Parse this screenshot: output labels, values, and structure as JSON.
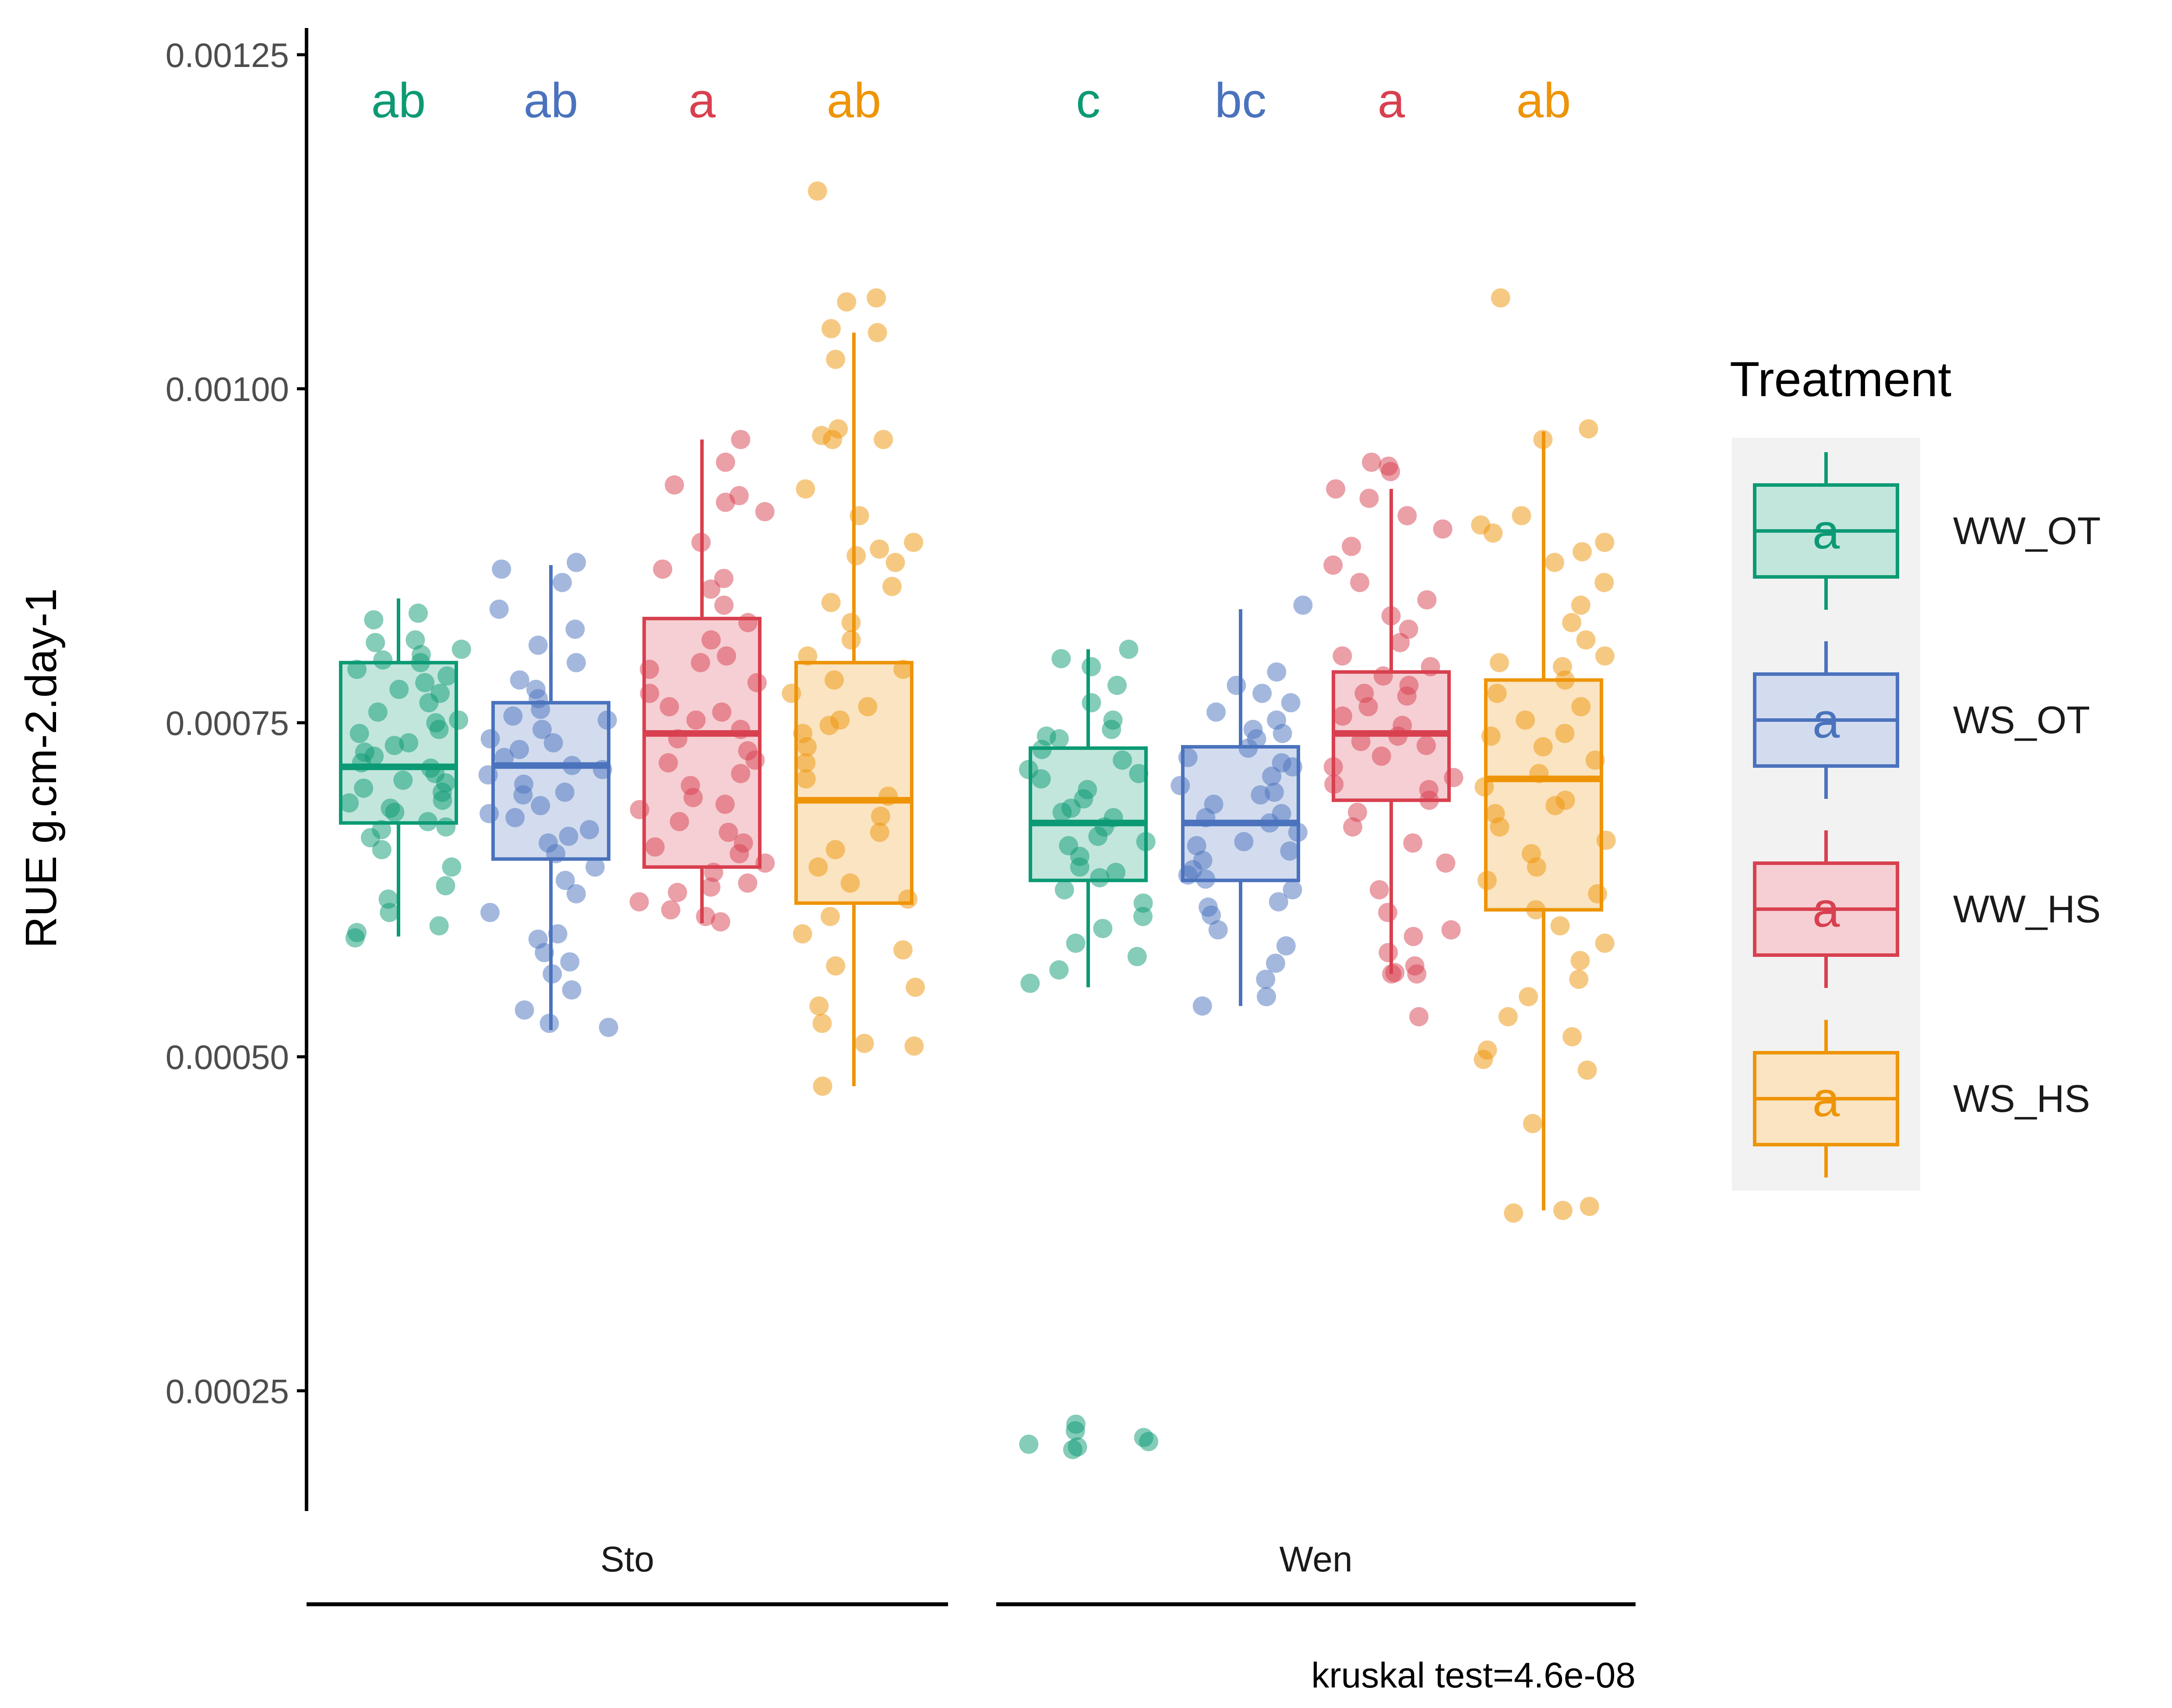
{
  "chart_data": {
    "type": "box",
    "ylabel": "RUE g.cm-2.day-1",
    "xlabel": "",
    "ylim": [
      0.00016,
      0.00127
    ],
    "y_ticks": [
      "0.00025",
      "0.00050",
      "0.00075",
      "0.00100",
      "0.00125"
    ],
    "y_tick_values": [
      0.00025,
      0.0005,
      0.00075,
      0.001,
      0.00125
    ],
    "grid": false,
    "legend": {
      "title": "Treatment",
      "position": "right",
      "entries": [
        "WW_OT",
        "WS_OT",
        "WW_HS",
        "WS_HS"
      ],
      "key_glyph": "a"
    },
    "colors": {
      "WW_OT": "#0b9a74",
      "WS_OT": "#4a72bd",
      "WW_HS": "#d8404f",
      "WS_HS": "#ee9407"
    },
    "caption": "kruskal test=4.6e-08",
    "groups": [
      {
        "name": "Sto",
        "boxes": [
          {
            "treatment": "WW_OT",
            "letter": "ab",
            "whisker_low": 0.00059,
            "q1": 0.000675,
            "median": 0.000717,
            "q3": 0.000795,
            "whisker_high": 0.000843,
            "points": [
              0.000832,
              0.000827,
              0.000812,
              0.000805,
              0.000801,
              0.000795,
              0.00079,
              0.000785,
              0.00078,
              0.000772,
              0.000765,
              0.000758,
              0.00075,
              0.000742,
              0.000735,
              0.000728,
              0.00072,
              0.000712,
              0.000705,
              0.000698,
              0.00069,
              0.000683,
              0.000676,
              0.00067,
              0.000664,
              0.000655,
              0.000642,
              0.000628,
              0.000618,
              0.000608,
              0.000598,
              0.000593,
              0.000589,
              0.00081,
              0.000797,
              0.000775,
              0.000752,
              0.000733,
              0.000716,
              0.000701,
              0.000686,
              0.000672,
              0.000745,
              0.000725,
              0.000707,
              0.000692
            ]
          },
          {
            "treatment": "WS_OT",
            "letter": "ab",
            "whisker_low": 0.00052,
            "q1": 0.000648,
            "median": 0.000718,
            "q3": 0.000765,
            "whisker_high": 0.000868,
            "points": [
              0.00087,
              0.000865,
              0.000855,
              0.000835,
              0.00082,
              0.000808,
              0.000795,
              0.000782,
              0.000775,
              0.000768,
              0.00076,
              0.000752,
              0.000745,
              0.000738,
              0.00073,
              0.000724,
              0.000718,
              0.000711,
              0.000704,
              0.000696,
              0.000688,
              0.000679,
              0.00067,
              0.00066,
              0.000652,
              0.000642,
              0.000632,
              0.000622,
              0.000608,
              0.000592,
              0.000578,
              0.000562,
              0.00055,
              0.000535,
              0.000525,
              0.000522,
              0.000755,
              0.000735,
              0.000715,
              0.000698,
              0.000682,
              0.000665,
              0.000571,
              0.000588
            ]
          },
          {
            "treatment": "WW_HS",
            "letter": "a",
            "whisker_low": 0.0006,
            "q1": 0.000642,
            "median": 0.000742,
            "q3": 0.000828,
            "whisker_high": 0.000962,
            "points": [
              0.000962,
              0.000945,
              0.000928,
              0.00092,
              0.000908,
              0.000885,
              0.000865,
              0.00085,
              0.000838,
              0.000825,
              0.000812,
              0.0008,
              0.00079,
              0.00078,
              0.000772,
              0.000762,
              0.000752,
              0.000745,
              0.000738,
              0.000729,
              0.00072,
              0.000712,
              0.000703,
              0.000694,
              0.000685,
              0.000676,
              0.000668,
              0.00066,
              0.000652,
              0.000645,
              0.000638,
              0.00063,
              0.000623,
              0.000616,
              0.00061,
              0.000605,
              0.000601,
              0.000915,
              0.000858,
              0.000795,
              0.000758,
              0.000722,
              0.000689,
              0.000657,
              0.000627
            ]
          },
          {
            "treatment": "WS_HS",
            "letter": "ab",
            "whisker_low": 0.000478,
            "q1": 0.000615,
            "median": 0.000692,
            "q3": 0.000795,
            "whisker_high": 0.001042,
            "points": [
              0.001148,
              0.001068,
              0.001065,
              0.001045,
              0.001042,
              0.001022,
              0.00097,
              0.000965,
              0.000962,
              0.000925,
              0.000905,
              0.000885,
              0.00088,
              0.000875,
              0.00087,
              0.000852,
              0.00084,
              0.000825,
              0.000812,
              0.0008,
              0.00079,
              0.000782,
              0.000772,
              0.000762,
              0.000752,
              0.000742,
              0.000732,
              0.00072,
              0.000708,
              0.000695,
              0.00068,
              0.000668,
              0.000655,
              0.000642,
              0.00063,
              0.000618,
              0.000605,
              0.000592,
              0.00058,
              0.000568,
              0.000552,
              0.000538,
              0.000525,
              0.00051,
              0.000508,
              0.000478,
              0.000962,
              0.000748
            ]
          }
        ]
      },
      {
        "name": "Wen",
        "boxes": [
          {
            "treatment": "WW_OT",
            "letter": "c",
            "whisker_low": 0.000552,
            "q1": 0.000632,
            "median": 0.000675,
            "q3": 0.000731,
            "whisker_high": 0.000805,
            "points": [
              0.000805,
              0.000798,
              0.000792,
              0.000778,
              0.000765,
              0.000752,
              0.000745,
              0.000738,
              0.00073,
              0.000722,
              0.000715,
              0.000708,
              0.0007,
              0.000693,
              0.000686,
              0.000679,
              0.000672,
              0.000665,
              0.000658,
              0.00065,
              0.000642,
              0.000634,
              0.000625,
              0.000615,
              0.000605,
              0.000596,
              0.000585,
              0.000575,
              0.000565,
              0.000555,
              0.000225,
              0.00022,
              0.000215,
              0.000212,
              0.00021,
              0.000208,
              0.000206,
              0.00074,
              0.000712,
              0.000683,
              0.000661,
              0.000638
            ]
          },
          {
            "treatment": "WS_OT",
            "letter": "bc",
            "whisker_low": 0.000538,
            "q1": 0.000632,
            "median": 0.000675,
            "q3": 0.000732,
            "whisker_high": 0.000835,
            "points": [
              0.000838,
              0.000788,
              0.000778,
              0.000772,
              0.000765,
              0.000758,
              0.000752,
              0.000745,
              0.000738,
              0.000731,
              0.000724,
              0.000717,
              0.00071,
              0.000703,
              0.000696,
              0.000689,
              0.000682,
              0.000675,
              0.000668,
              0.000661,
              0.000654,
              0.000647,
              0.00064,
              0.000633,
              0.000625,
              0.000616,
              0.000606,
              0.000595,
              0.000583,
              0.00057,
              0.000558,
              0.000545,
              0.000538,
              0.000742,
              0.00072,
              0.000698,
              0.000679,
              0.000658,
              0.000636,
              0.000612
            ]
          },
          {
            "treatment": "WW_HS",
            "letter": "a",
            "whisker_low": 0.000562,
            "q1": 0.000692,
            "median": 0.000742,
            "q3": 0.000788,
            "whisker_high": 0.000925,
            "points": [
              0.000945,
              0.000942,
              0.000938,
              0.000925,
              0.000918,
              0.000905,
              0.000895,
              0.000882,
              0.000868,
              0.000855,
              0.000842,
              0.00083,
              0.00082,
              0.00081,
              0.0008,
              0.000792,
              0.000785,
              0.000778,
              0.00077,
              0.000762,
              0.000755,
              0.000748,
              0.00074,
              0.000733,
              0.000725,
              0.000717,
              0.000709,
              0.0007,
              0.000692,
              0.000683,
              0.000672,
              0.00066,
              0.000645,
              0.000625,
              0.000608,
              0.000595,
              0.00059,
              0.000578,
              0.000568,
              0.000563,
              0.000562,
              0.000562,
              0.00053,
              0.000772,
              0.000736,
              0.000704
            ]
          },
          {
            "treatment": "WS_HS",
            "letter": "ab",
            "whisker_low": 0.000385,
            "q1": 0.00061,
            "median": 0.000708,
            "q3": 0.000782,
            "whisker_high": 0.000968,
            "points": [
              0.001068,
              0.00097,
              0.000962,
              0.000905,
              0.000898,
              0.000892,
              0.000885,
              0.000878,
              0.00087,
              0.000855,
              0.000838,
              0.000825,
              0.000812,
              0.0008,
              0.000792,
              0.000782,
              0.000772,
              0.000762,
              0.000752,
              0.000742,
              0.000732,
              0.000722,
              0.000712,
              0.000702,
              0.000692,
              0.000682,
              0.000672,
              0.000662,
              0.000652,
              0.000642,
              0.000632,
              0.000622,
              0.00061,
              0.000598,
              0.000585,
              0.000572,
              0.000558,
              0.000545,
              0.00053,
              0.000515,
              0.000505,
              0.000498,
              0.00049,
              0.00045,
              0.000388,
              0.000385,
              0.000383,
              0.000795,
              0.00074,
              0.000688
            ]
          }
        ]
      }
    ]
  }
}
